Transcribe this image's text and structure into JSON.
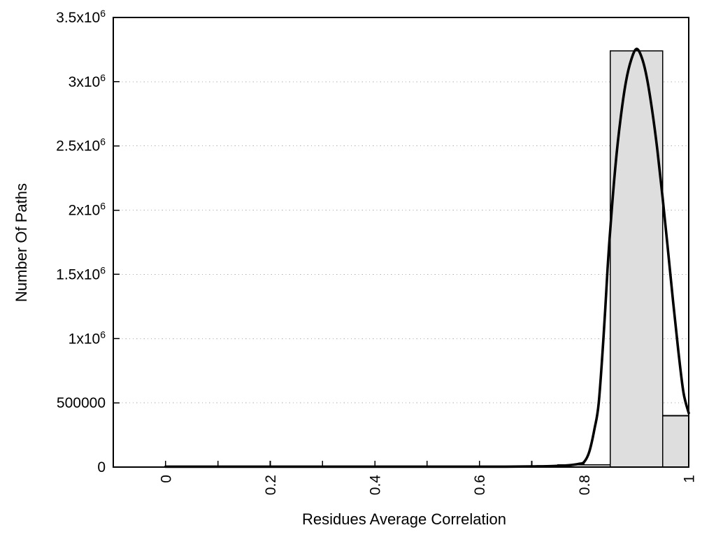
{
  "figure": {
    "background": "#ffffff"
  },
  "chart_data": {
    "type": "bar",
    "subtype": "histogram-with-fit-curve",
    "title": "",
    "xlabel": "Residues Average Correlation",
    "ylabel": "Number Of Paths",
    "xlim": [
      -0.1,
      1.0
    ],
    "ylim": [
      0,
      3500000
    ],
    "legend": "none",
    "grid": {
      "horizontal": "dotted",
      "vertical": "none",
      "color": "#ababab"
    },
    "axes_color": "#000000",
    "x_ticks": {
      "major": [
        {
          "v": 0,
          "label": "0"
        },
        {
          "v": 0.2,
          "label": "0.2"
        },
        {
          "v": 0.4,
          "label": "0.4"
        },
        {
          "v": 0.6,
          "label": "0.6"
        },
        {
          "v": 0.8,
          "label": "0.8"
        },
        {
          "v": 1.0,
          "label": "1"
        }
      ],
      "minor": [
        0.1,
        0.3,
        0.5,
        0.7,
        0.9
      ]
    },
    "y_ticks": [
      {
        "v": 0,
        "label": "0",
        "sup": ""
      },
      {
        "v": 500000,
        "label": "500000",
        "sup": ""
      },
      {
        "v": 1000000,
        "label": "1x10",
        "sup": "6"
      },
      {
        "v": 1500000,
        "label": "1.5x10",
        "sup": "6"
      },
      {
        "v": 2000000,
        "label": "2x10",
        "sup": "6"
      },
      {
        "v": 2500000,
        "label": "2.5x10",
        "sup": "6"
      },
      {
        "v": 3000000,
        "label": "3x10",
        "sup": "6"
      },
      {
        "v": 3500000,
        "label": "3.5x10",
        "sup": "6"
      }
    ],
    "histogram": {
      "fill": "#dedede",
      "edge": "#000000",
      "bin_width": 0.1,
      "bins": [
        {
          "x1": 0.75,
          "x2": 0.85,
          "center": 0.8,
          "count": 18000
        },
        {
          "x1": 0.85,
          "x2": 0.95,
          "center": 0.9,
          "count": 3240000
        },
        {
          "x1": 0.95,
          "x2": 1.0,
          "center": 1.0,
          "count": 400000
        }
      ]
    },
    "fit_curve": {
      "color": "#000000",
      "peak_x": 0.9,
      "peak_y": 3255000,
      "points": [
        [
          0.0,
          1500
        ],
        [
          0.05,
          1500
        ],
        [
          0.1,
          1500
        ],
        [
          0.15,
          1500
        ],
        [
          0.2,
          1500
        ],
        [
          0.25,
          1500
        ],
        [
          0.3,
          1500
        ],
        [
          0.35,
          1500
        ],
        [
          0.4,
          1500
        ],
        [
          0.45,
          1500
        ],
        [
          0.5,
          1500
        ],
        [
          0.55,
          1500
        ],
        [
          0.6,
          2000
        ],
        [
          0.65,
          3000
        ],
        [
          0.7,
          5000
        ],
        [
          0.74,
          8000
        ],
        [
          0.77,
          14000
        ],
        [
          0.79,
          25000
        ],
        [
          0.8,
          40000
        ],
        [
          0.81,
          120000
        ],
        [
          0.82,
          300000
        ],
        [
          0.828,
          500000
        ],
        [
          0.837,
          1000000
        ],
        [
          0.845,
          1550000
        ],
        [
          0.85,
          1850000
        ],
        [
          0.86,
          2350000
        ],
        [
          0.87,
          2720000
        ],
        [
          0.88,
          3000000
        ],
        [
          0.89,
          3170000
        ],
        [
          0.9,
          3255000
        ],
        [
          0.91,
          3190000
        ],
        [
          0.92,
          3030000
        ],
        [
          0.93,
          2780000
        ],
        [
          0.94,
          2470000
        ],
        [
          0.95,
          2100000
        ],
        [
          0.96,
          1700000
        ],
        [
          0.97,
          1290000
        ],
        [
          0.98,
          910000
        ],
        [
          0.99,
          580000
        ],
        [
          1.0,
          420000
        ]
      ]
    }
  }
}
